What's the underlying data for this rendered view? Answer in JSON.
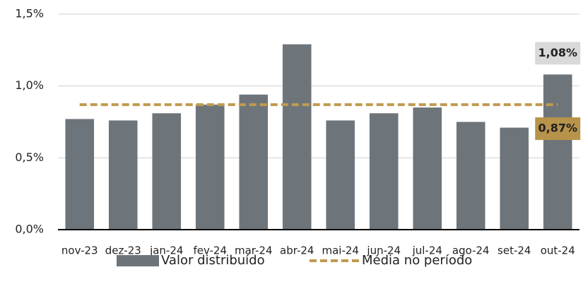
{
  "chart_data": {
    "type": "bar",
    "categories": [
      "nov-23",
      "dez-23",
      "jan-24",
      "fev-24",
      "mar-24",
      "abr-24",
      "mai-24",
      "jun-24",
      "jul-24",
      "ago-24",
      "set-24",
      "out-24"
    ],
    "series": [
      {
        "name": "Valor distribuído",
        "type": "bar",
        "color": "#6d757b",
        "values": [
          0.77,
          0.76,
          0.81,
          0.87,
          0.94,
          1.29,
          0.76,
          0.81,
          0.85,
          0.75,
          0.71,
          1.08
        ],
        "value_labels": [
          null,
          null,
          null,
          null,
          null,
          null,
          null,
          null,
          null,
          null,
          null,
          "1,08%"
        ],
        "label_box": "#d9d9d9"
      },
      {
        "name": "Média no período",
        "type": "line",
        "color": "#c09a4e",
        "values": [
          0.87,
          0.87,
          0.87,
          0.87,
          0.87,
          0.87,
          0.87,
          0.87,
          0.87,
          0.87,
          0.87,
          0.87
        ],
        "value_labels": [
          null,
          null,
          null,
          null,
          null,
          null,
          null,
          null,
          null,
          null,
          null,
          "0,87%"
        ],
        "label_box": "#b8934a"
      }
    ],
    "ylim": [
      0,
      1.5
    ],
    "yticks": [
      {
        "value": 0,
        "label": "0,0%"
      },
      {
        "value": 0.5,
        "label": "0,5%"
      },
      {
        "value": 1.0,
        "label": "1,0%"
      },
      {
        "value": 1.5,
        "label": "1,5%"
      }
    ],
    "grid": true,
    "legend": "bottom"
  }
}
